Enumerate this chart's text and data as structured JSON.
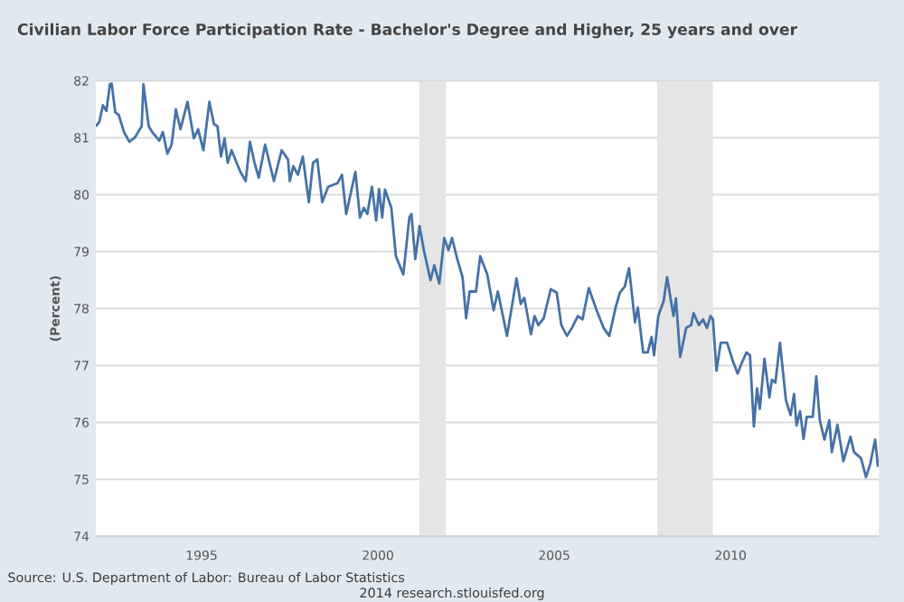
{
  "chart_data": {
    "type": "line",
    "title": "Civilian Labor Force Participation Rate - Bachelor's Degree and Higher, 25 years and over",
    "ylabel": "(Percent)",
    "color": "#4572a7",
    "x": [
      1992.0,
      1992.1,
      1992.2,
      1992.3,
      1992.4,
      1992.45,
      1992.55,
      1992.65,
      1992.8,
      1992.95,
      1993.1,
      1993.3,
      1993.35,
      1993.5,
      1993.6,
      1993.8,
      1993.9,
      1994.03,
      1994.15,
      1994.27,
      1994.4,
      1994.6,
      1994.78,
      1994.9,
      1995.05,
      1995.22,
      1995.35,
      1995.45,
      1995.55,
      1995.65,
      1995.74,
      1995.85,
      1996.1,
      1996.25,
      1996.37,
      1996.5,
      1996.62,
      1996.8,
      1997.05,
      1997.27,
      1997.45,
      1997.5,
      1997.6,
      1997.73,
      1997.87,
      1998.04,
      1998.16,
      1998.28,
      1998.42,
      1998.59,
      1998.85,
      1998.98,
      1999.1,
      1999.36,
      1999.49,
      1999.6,
      1999.7,
      1999.83,
      1999.95,
      2000.03,
      2000.12,
      2000.2,
      2000.38,
      2000.51,
      2000.72,
      2000.89,
      2000.95,
      2001.06,
      2001.18,
      2001.3,
      2001.49,
      2001.6,
      2001.74,
      2001.88,
      2002.0,
      2002.1,
      2002.25,
      2002.4,
      2002.5,
      2002.6,
      2002.78,
      2002.9,
      2003.1,
      2003.28,
      2003.4,
      2003.66,
      2003.93,
      2004.05,
      2004.15,
      2004.34,
      2004.44,
      2004.55,
      2004.7,
      2004.9,
      2005.07,
      2005.2,
      2005.36,
      2005.5,
      2005.67,
      2005.8,
      2005.98,
      2006.2,
      2006.4,
      2006.56,
      2006.74,
      2006.86,
      2007.0,
      2007.12,
      2007.29,
      2007.37,
      2007.52,
      2007.65,
      2007.76,
      2007.83,
      2007.95,
      2008.1,
      2008.2,
      2008.38,
      2008.45,
      2008.57,
      2008.74,
      2008.88,
      2008.95,
      2009.1,
      2009.22,
      2009.33,
      2009.43,
      2009.5,
      2009.6,
      2009.72,
      2009.9,
      2010.07,
      2010.2,
      2010.3,
      2010.45,
      2010.55,
      2010.66,
      2010.75,
      2010.83,
      2010.96,
      2011.1,
      2011.17,
      2011.27,
      2011.4,
      2011.57,
      2011.7,
      2011.8,
      2011.87,
      2011.97,
      2012.07,
      2012.16,
      2012.33,
      2012.43,
      2012.53,
      2012.66,
      2012.8,
      2012.87,
      2013.03,
      2013.2,
      2013.4,
      2013.5,
      2013.7,
      2013.84,
      2013.96,
      2014.1,
      2014.18
    ],
    "values": [
      81.2,
      81.28,
      81.57,
      81.47,
      81.94,
      81.95,
      81.45,
      81.4,
      81.1,
      80.93,
      81.0,
      81.2,
      81.94,
      81.2,
      81.1,
      80.95,
      81.1,
      80.72,
      80.88,
      81.5,
      81.15,
      81.63,
      80.99,
      81.15,
      80.78,
      81.63,
      81.24,
      81.2,
      80.67,
      80.99,
      80.56,
      80.78,
      80.4,
      80.24,
      80.93,
      80.56,
      80.3,
      80.88,
      80.24,
      80.78,
      80.62,
      80.24,
      80.5,
      80.35,
      80.67,
      79.87,
      80.56,
      80.62,
      79.87,
      80.14,
      80.2,
      80.35,
      79.66,
      80.4,
      79.6,
      79.77,
      79.66,
      80.14,
      79.55,
      80.1,
      79.6,
      80.09,
      79.77,
      78.92,
      78.6,
      79.6,
      79.66,
      78.87,
      79.45,
      79.03,
      78.5,
      78.76,
      78.44,
      79.24,
      79.03,
      79.24,
      78.87,
      78.55,
      77.83,
      78.3,
      78.3,
      78.92,
      78.6,
      77.97,
      78.3,
      77.52,
      78.53,
      78.08,
      78.19,
      77.55,
      77.87,
      77.71,
      77.83,
      78.34,
      78.28,
      77.71,
      77.52,
      77.66,
      77.87,
      77.81,
      78.36,
      77.97,
      77.66,
      77.52,
      78.02,
      78.28,
      78.39,
      78.71,
      77.76,
      78.02,
      77.23,
      77.23,
      77.5,
      77.18,
      77.87,
      78.13,
      78.55,
      77.87,
      78.18,
      77.15,
      77.66,
      77.71,
      77.92,
      77.71,
      77.81,
      77.66,
      77.87,
      77.81,
      76.91,
      77.4,
      77.4,
      77.07,
      76.86,
      77.02,
      77.23,
      77.18,
      75.93,
      76.6,
      76.24,
      77.12,
      76.44,
      76.75,
      76.7,
      77.4,
      76.39,
      76.13,
      76.5,
      75.95,
      76.2,
      75.71,
      76.1,
      76.1,
      76.81,
      76.04,
      75.7,
      76.04,
      75.48,
      75.96,
      75.32,
      75.75,
      75.48,
      75.37,
      75.04,
      75.27,
      75.7,
      75.22
    ],
    "xlim": [
      1992.0,
      2014.2
    ],
    "xticks": [
      1995,
      2000,
      2005,
      2010
    ],
    "ylim": [
      74,
      82
    ],
    "yticks": [
      74,
      75,
      76,
      77,
      78,
      79,
      80,
      81,
      82
    ],
    "grid": "y",
    "bands": [
      {
        "axis": "x",
        "from": 2001.17,
        "to": 2001.92,
        "color": "#e5e5e5"
      },
      {
        "axis": "x",
        "from": 2007.92,
        "to": 2009.5,
        "color": "#e5e5e5"
      }
    ],
    "annotations": [
      "Source: U.S. Department of Labor: Bureau of Labor Statistics",
      "2014 research.stlouisfed.org"
    ]
  }
}
